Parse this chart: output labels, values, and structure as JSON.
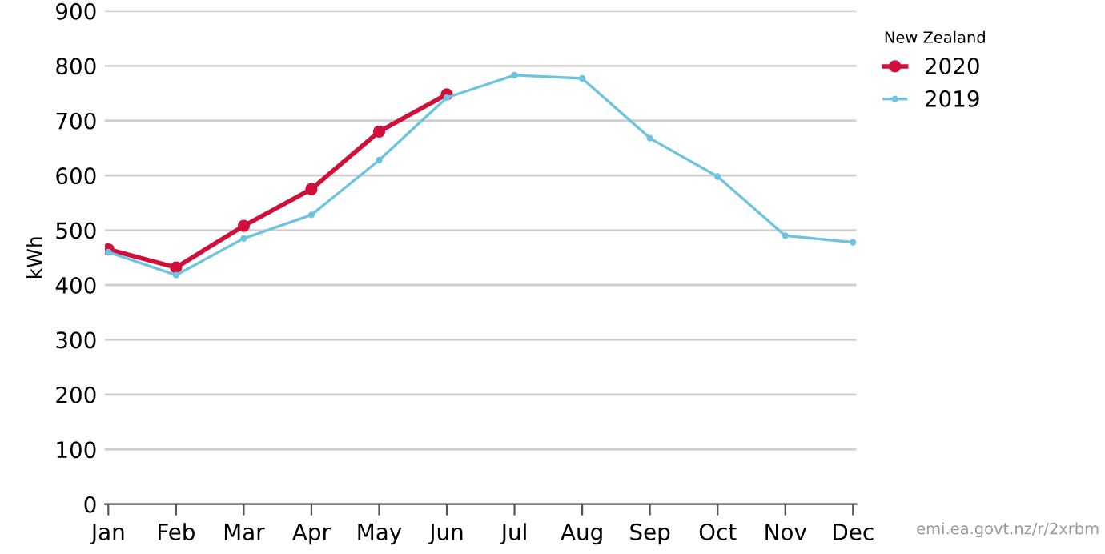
{
  "chart_data": {
    "type": "line",
    "ylabel": "kWh",
    "legend_title": "New Zealand",
    "categories": [
      "Jan",
      "Feb",
      "Mar",
      "Apr",
      "May",
      "Jun",
      "Jul",
      "Aug",
      "Sep",
      "Oct",
      "Nov",
      "Dec"
    ],
    "series": [
      {
        "name": "2020",
        "color": "#d0103a",
        "values": [
          465,
          432,
          508,
          575,
          680,
          748,
          null,
          null,
          null,
          null,
          null,
          null
        ]
      },
      {
        "name": "2019",
        "color": "#6ec4e0",
        "values": [
          460,
          418,
          485,
          528,
          628,
          742,
          783,
          777,
          668,
          598,
          490,
          478
        ]
      }
    ],
    "ylim": [
      0,
      900
    ],
    "yticks": [
      0,
      100,
      200,
      300,
      400,
      500,
      600,
      700,
      800,
      900
    ],
    "grid": "y",
    "legend": "top right",
    "marker": "circle",
    "line_style": "solid",
    "annotations": [
      "emi.ea.govt.nz/r/2xrbm"
    ]
  }
}
